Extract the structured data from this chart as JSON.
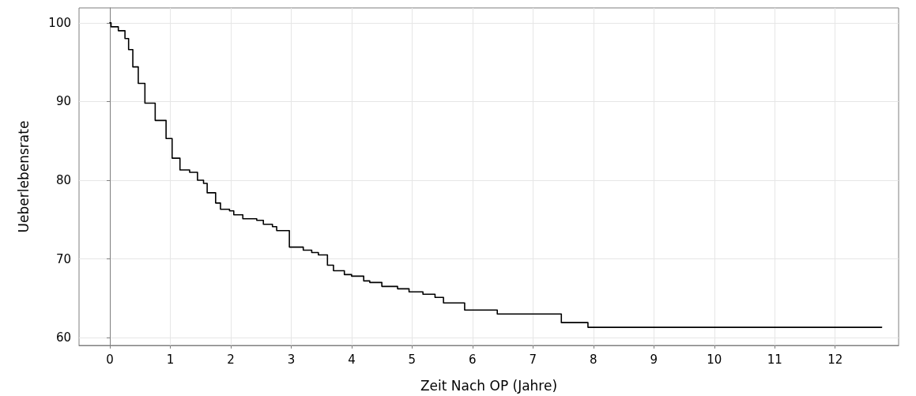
{
  "chart_data": {
    "type": "step",
    "xlabel": "Zeit Nach OP (Jahre)",
    "ylabel": "Ueberlebensrate",
    "x": [
      0,
      0.02,
      0.14,
      0.25,
      0.31,
      0.38,
      0.47,
      0.58,
      0.75,
      0.93,
      1.03,
      1.16,
      1.32,
      1.45,
      1.55,
      1.61,
      1.75,
      1.83,
      1.98,
      2.05,
      2.2,
      2.43,
      2.54,
      2.69,
      2.76,
      2.97,
      3.2,
      3.34,
      3.45,
      3.6,
      3.7,
      3.88,
      4.0,
      4.2,
      4.3,
      4.5,
      4.76,
      4.95,
      5.18,
      5.38,
      5.52,
      5.87,
      6.41,
      7.47,
      7.91,
      12.77
    ],
    "values": [
      100,
      99.5,
      99.0,
      98.0,
      96.6,
      94.4,
      92.3,
      89.8,
      87.6,
      85.3,
      82.8,
      81.3,
      81.0,
      80.0,
      79.6,
      78.4,
      77.1,
      76.3,
      76.1,
      75.6,
      75.1,
      74.9,
      74.4,
      74.1,
      73.6,
      71.5,
      71.1,
      70.8,
      70.5,
      69.2,
      68.5,
      68.0,
      67.8,
      67.2,
      67.0,
      66.5,
      66.2,
      65.8,
      65.5,
      65.1,
      64.4,
      63.5,
      63.0,
      61.9,
      61.3,
      61.3
    ],
    "color": "#000000",
    "xlim": [
      -0.51,
      13.05
    ],
    "xticks": [
      0,
      1,
      2,
      3,
      4,
      5,
      6,
      7,
      8,
      9,
      10,
      11,
      12
    ],
    "ylim": [
      59.0,
      101.9
    ],
    "yticks": [
      60,
      70,
      80,
      90,
      100
    ],
    "grid": true,
    "line_style": "solid",
    "marker": "none"
  }
}
